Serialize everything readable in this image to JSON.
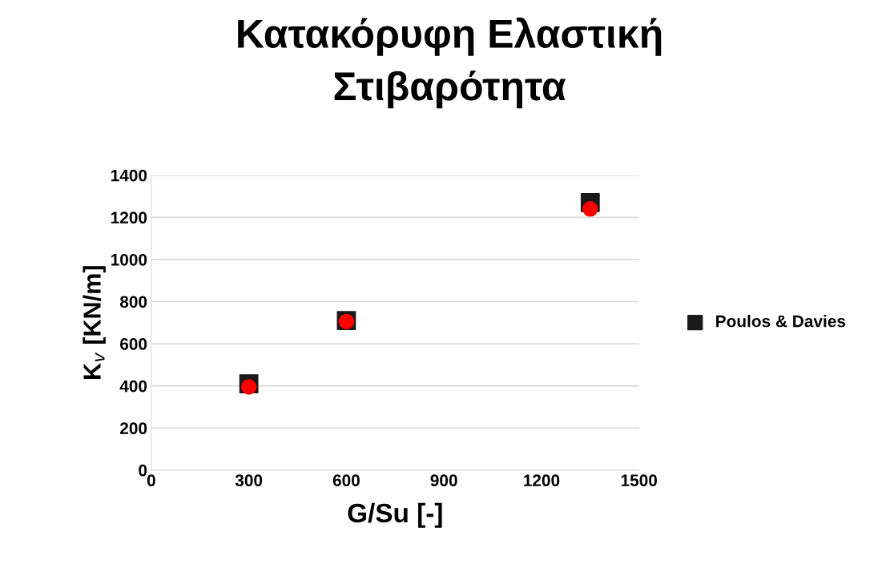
{
  "chart_data": {
    "type": "scatter",
    "title": "Κατακόρυφη Ελαστική\nΣτιβαρότητα",
    "xlabel": "G/Su [-]",
    "ylabel": "K$_{v}$ [KN/m]",
    "x": [
      300,
      600,
      1350
    ],
    "series": [
      {
        "name": "Poulos & Davies",
        "color": "#1a1a1a",
        "marker": "square",
        "values": [
          410,
          710,
          1270
        ]
      },
      {
        "color": "#ff0000",
        "marker": "circle",
        "values": [
          395,
          705,
          1240
        ]
      }
    ],
    "xlim": [
      0,
      1500
    ],
    "xticks": [
      0,
      300,
      600,
      900,
      1200,
      1500
    ],
    "ylim": [
      0,
      1400
    ],
    "yticks": [
      0,
      200,
      400,
      600,
      800,
      1000,
      1200,
      1400
    ],
    "grid": "y",
    "legend": "right"
  }
}
